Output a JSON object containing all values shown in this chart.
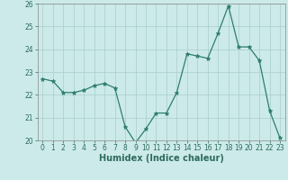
{
  "x": [
    0,
    1,
    2,
    3,
    4,
    5,
    6,
    7,
    8,
    9,
    10,
    11,
    12,
    13,
    14,
    15,
    16,
    17,
    18,
    19,
    20,
    21,
    22,
    23
  ],
  "y": [
    22.7,
    22.6,
    22.1,
    22.1,
    22.2,
    22.4,
    22.5,
    22.3,
    20.6,
    19.9,
    20.5,
    21.2,
    21.2,
    22.1,
    23.8,
    23.7,
    23.6,
    24.7,
    25.9,
    24.1,
    24.1,
    23.5,
    21.3,
    20.1
  ],
  "line_color": "#2d7d6e",
  "marker": "*",
  "marker_size": 3.5,
  "bg_color": "#cceaea",
  "grid_color": "#aacccc",
  "xlabel": "Humidex (Indice chaleur)",
  "ylim": [
    20,
    26
  ],
  "xlim": [
    -0.5,
    23.5
  ],
  "yticks": [
    20,
    21,
    22,
    23,
    24,
    25,
    26
  ],
  "xticks": [
    0,
    1,
    2,
    3,
    4,
    5,
    6,
    7,
    8,
    9,
    10,
    11,
    12,
    13,
    14,
    15,
    16,
    17,
    18,
    19,
    20,
    21,
    22,
    23
  ],
  "tick_color": "#2d6b5e",
  "label_color": "#2d6b5e",
  "axis_color": "#888888",
  "tick_fontsize": 5.5,
  "xlabel_fontsize": 7.0
}
